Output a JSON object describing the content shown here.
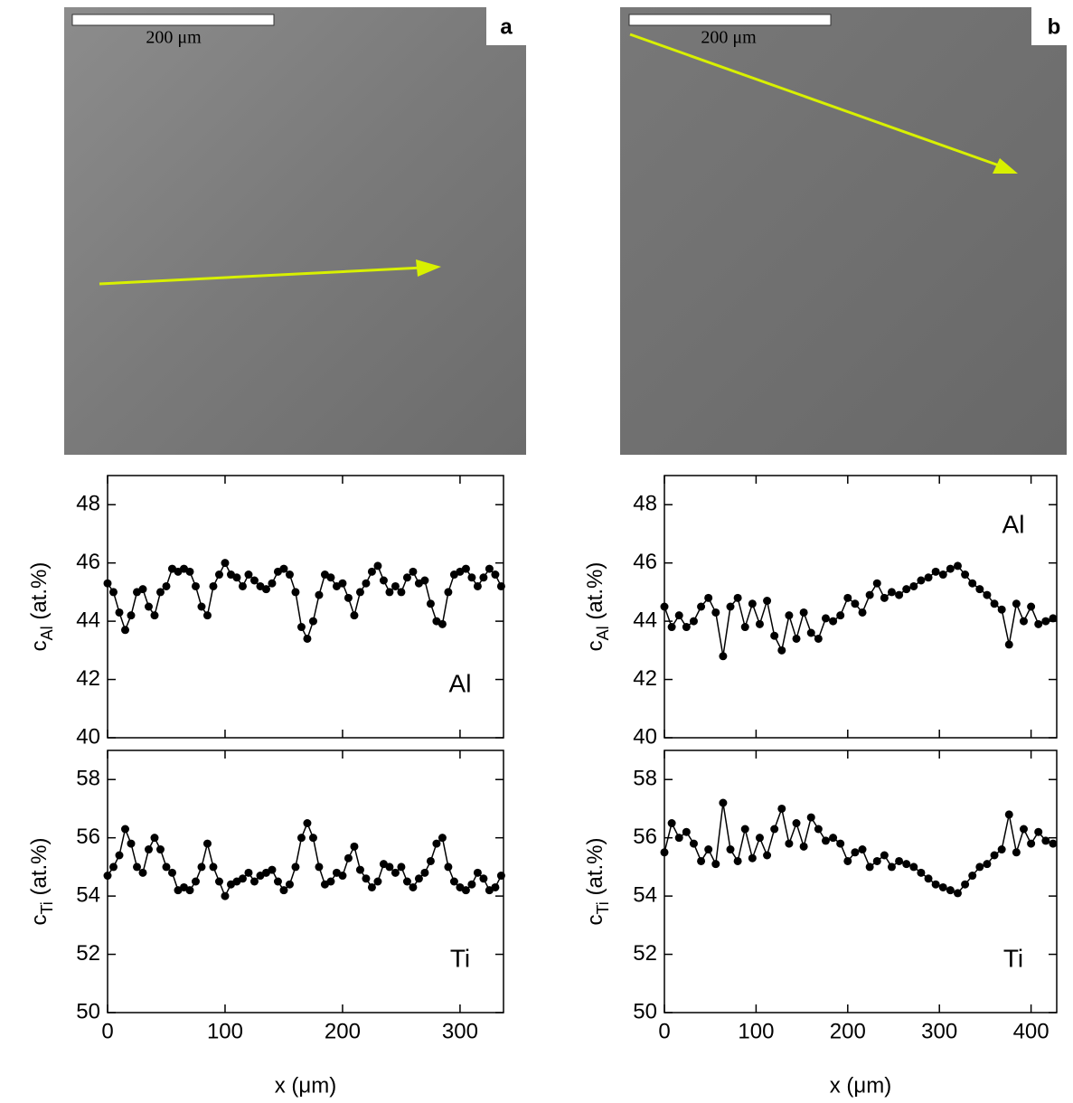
{
  "micrographs": [
    {
      "label": "a",
      "scale_bar": "200 μm"
    },
    {
      "label": "b",
      "scale_bar": "200 μm"
    }
  ],
  "chart_data": [
    {
      "type": "line",
      "ylabel": {
        "main": "c",
        "sub": "Al",
        "unit": " (at.%)"
      },
      "annotation": "Al",
      "color": "#000000",
      "x": [
        0,
        5,
        10,
        15,
        20,
        25,
        30,
        35,
        40,
        45,
        50,
        55,
        60,
        65,
        70,
        75,
        80,
        85,
        90,
        95,
        100,
        105,
        110,
        115,
        120,
        125,
        130,
        135,
        140,
        145,
        150,
        155,
        160,
        165,
        170,
        175,
        180,
        185,
        190,
        195,
        200,
        205,
        210,
        215,
        220,
        225,
        230,
        235,
        240,
        245,
        250,
        255,
        260,
        265,
        270,
        275,
        280,
        285,
        290,
        295,
        300,
        305,
        310,
        315,
        320,
        325,
        330,
        335
      ],
      "values": [
        45.3,
        45.0,
        44.3,
        43.7,
        44.2,
        45.0,
        45.1,
        44.5,
        44.2,
        45.0,
        45.2,
        45.8,
        45.7,
        45.8,
        45.7,
        45.2,
        44.5,
        44.2,
        45.2,
        45.6,
        46.0,
        45.6,
        45.5,
        45.2,
        45.6,
        45.4,
        45.2,
        45.1,
        45.3,
        45.7,
        45.8,
        45.6,
        45.0,
        43.8,
        43.4,
        44.0,
        44.9,
        45.6,
        45.5,
        45.2,
        45.3,
        44.8,
        44.2,
        45.0,
        45.3,
        45.7,
        45.9,
        45.4,
        45.0,
        45.2,
        45.0,
        45.5,
        45.7,
        45.3,
        45.4,
        44.6,
        44.0,
        43.9,
        45.0,
        45.6,
        45.7,
        45.8,
        45.5,
        45.2,
        45.5,
        45.8,
        45.6,
        45.2
      ],
      "xlim": [
        0,
        337
      ],
      "xticks": [
        0,
        100,
        200,
        300
      ],
      "ylim": [
        40,
        49
      ],
      "yticks": [
        40,
        42,
        44,
        46,
        48
      ]
    },
    {
      "type": "line",
      "ylabel": {
        "main": "c",
        "sub": "Ti",
        "unit": " (at.%)"
      },
      "annotation": "Ti",
      "xlabel": "x (μm)",
      "color": "#000000",
      "x": [
        0,
        5,
        10,
        15,
        20,
        25,
        30,
        35,
        40,
        45,
        50,
        55,
        60,
        65,
        70,
        75,
        80,
        85,
        90,
        95,
        100,
        105,
        110,
        115,
        120,
        125,
        130,
        135,
        140,
        145,
        150,
        155,
        160,
        165,
        170,
        175,
        180,
        185,
        190,
        195,
        200,
        205,
        210,
        215,
        220,
        225,
        230,
        235,
        240,
        245,
        250,
        255,
        260,
        265,
        270,
        275,
        280,
        285,
        290,
        295,
        300,
        305,
        310,
        315,
        320,
        325,
        330,
        335
      ],
      "values": [
        54.7,
        55.0,
        55.4,
        56.3,
        55.8,
        55.0,
        54.8,
        55.6,
        56.0,
        55.6,
        55.0,
        54.8,
        54.2,
        54.3,
        54.2,
        54.5,
        55.0,
        55.8,
        55.0,
        54.5,
        54.0,
        54.4,
        54.5,
        54.6,
        54.8,
        54.5,
        54.7,
        54.8,
        54.9,
        54.5,
        54.2,
        54.4,
        55.0,
        56.0,
        56.5,
        56.0,
        55.0,
        54.4,
        54.5,
        54.8,
        54.7,
        55.3,
        55.7,
        54.9,
        54.6,
        54.3,
        54.5,
        55.1,
        55.0,
        54.8,
        55.0,
        54.5,
        54.3,
        54.6,
        54.8,
        55.2,
        55.8,
        56.0,
        55.0,
        54.5,
        54.3,
        54.2,
        54.4,
        54.8,
        54.6,
        54.2,
        54.3,
        54.7
      ],
      "xlim": [
        0,
        337
      ],
      "xticks": [
        0,
        100,
        200,
        300
      ],
      "ylim": [
        50,
        59
      ],
      "yticks": [
        50,
        52,
        54,
        56,
        58
      ]
    },
    {
      "type": "line",
      "ylabel": {
        "main": "c",
        "sub": "Al",
        "unit": " (at.%)"
      },
      "annotation": "Al",
      "color": "#000000",
      "x": [
        0,
        8,
        16,
        24,
        32,
        40,
        48,
        56,
        64,
        72,
        80,
        88,
        96,
        104,
        112,
        120,
        128,
        136,
        144,
        152,
        160,
        168,
        176,
        184,
        192,
        200,
        208,
        216,
        224,
        232,
        240,
        248,
        256,
        264,
        272,
        280,
        288,
        296,
        304,
        312,
        320,
        328,
        336,
        344,
        352,
        360,
        368,
        376,
        384,
        392,
        400,
        408,
        416,
        424
      ],
      "values": [
        44.5,
        43.8,
        44.2,
        43.8,
        44.0,
        44.5,
        44.8,
        44.3,
        42.8,
        44.5,
        44.8,
        43.8,
        44.6,
        43.9,
        44.7,
        43.5,
        43.0,
        44.2,
        43.4,
        44.3,
        43.6,
        43.4,
        44.1,
        44.0,
        44.2,
        44.8,
        44.6,
        44.3,
        44.9,
        45.3,
        44.8,
        45.0,
        44.9,
        45.1,
        45.2,
        45.4,
        45.5,
        45.7,
        45.6,
        45.8,
        45.9,
        45.6,
        45.3,
        45.1,
        44.9,
        44.6,
        44.4,
        43.2,
        44.6,
        44.0,
        44.5,
        43.9,
        44.0,
        44.1
      ],
      "xlim": [
        0,
        428
      ],
      "xticks": [
        0,
        100,
        200,
        300,
        400
      ],
      "ylim": [
        40,
        49
      ],
      "yticks": [
        40,
        42,
        44,
        46,
        48
      ]
    },
    {
      "type": "line",
      "ylabel": {
        "main": "c",
        "sub": "Ti",
        "unit": " (at.%)"
      },
      "annotation": "Ti",
      "xlabel": "x (μm)",
      "color": "#000000",
      "x": [
        0,
        8,
        16,
        24,
        32,
        40,
        48,
        56,
        64,
        72,
        80,
        88,
        96,
        104,
        112,
        120,
        128,
        136,
        144,
        152,
        160,
        168,
        176,
        184,
        192,
        200,
        208,
        216,
        224,
        232,
        240,
        248,
        256,
        264,
        272,
        280,
        288,
        296,
        304,
        312,
        320,
        328,
        336,
        344,
        352,
        360,
        368,
        376,
        384,
        392,
        400,
        408,
        416,
        424
      ],
      "values": [
        55.5,
        56.5,
        56.0,
        56.2,
        55.8,
        55.2,
        55.6,
        55.1,
        57.2,
        55.6,
        55.2,
        56.3,
        55.3,
        56.0,
        55.4,
        56.3,
        57.0,
        55.8,
        56.5,
        55.7,
        56.7,
        56.3,
        55.9,
        56.0,
        55.8,
        55.2,
        55.5,
        55.6,
        55.0,
        55.2,
        55.4,
        55.0,
        55.2,
        55.1,
        55.0,
        54.8,
        54.6,
        54.4,
        54.3,
        54.2,
        54.1,
        54.4,
        54.7,
        55.0,
        55.1,
        55.4,
        55.6,
        56.8,
        55.5,
        56.3,
        55.8,
        56.2,
        55.9,
        55.8
      ],
      "xlim": [
        0,
        428
      ],
      "xticks": [
        0,
        100,
        200,
        300,
        400
      ],
      "ylim": [
        50,
        59
      ],
      "yticks": [
        50,
        52,
        54,
        56,
        58
      ]
    }
  ]
}
